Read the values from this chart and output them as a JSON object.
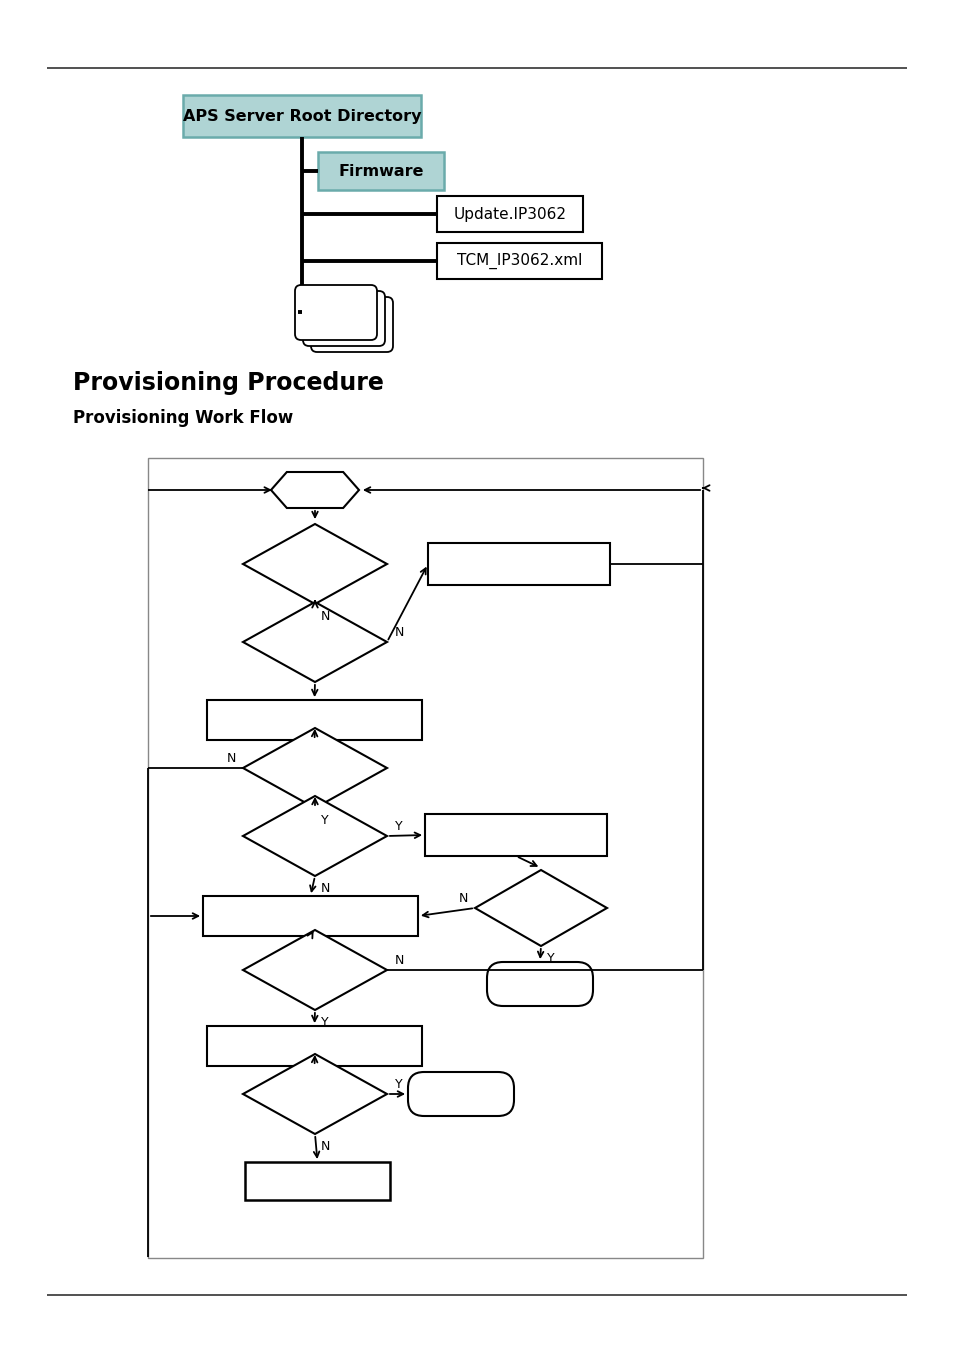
{
  "page_bg": "#ffffff",
  "title1": "Provisioning Procedure",
  "title2": "Provisioning Work Flow",
  "aps_label": "APS Server Root Directory",
  "firmware_label": "Firmware",
  "update_label": "Update.IP3062",
  "tcm_label": "TCM_IP3062.xml",
  "aps_color": "#afd4d4",
  "firmware_color": "#afd4d4"
}
